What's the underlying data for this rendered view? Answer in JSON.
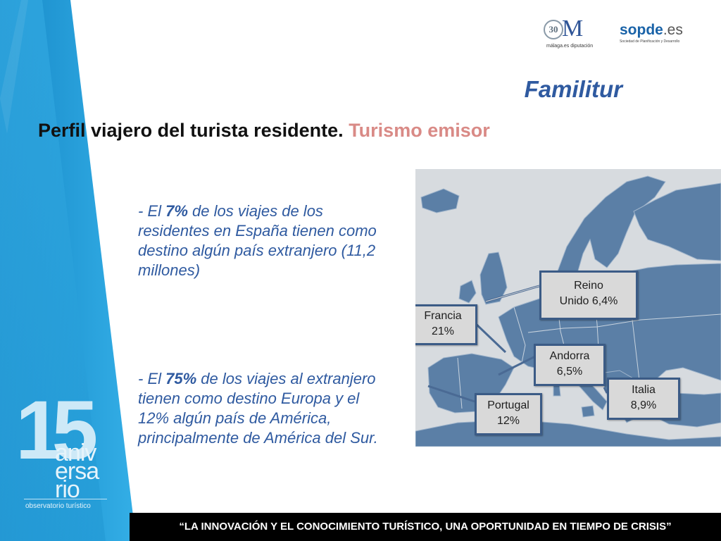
{
  "logos": {
    "malaga_badge": "30",
    "malaga_letter": "M",
    "malaga_caption": "málaga.es diputación",
    "sopde_name": "sopde",
    "sopde_domain": ".es",
    "sopde_tagline": "Sociedad de Planificación y Desarrollo"
  },
  "anniversary": {
    "number": "15",
    "word_1": "aniv",
    "word_2": "ersa",
    "word_3": "rio",
    "subtitle": "observatorio turístico"
  },
  "header": {
    "section_title": "Familitur",
    "heading_main": "Perfil viajero del turista residente.",
    "heading_accent": "Turismo emisor"
  },
  "bullets": [
    {
      "dash": "- ",
      "pre": "El ",
      "strong": "7%",
      "post": " de los viajes de los residentes en España tienen como destino algún país extranjero (11,2 millones)"
    },
    {
      "dash": "- ",
      "pre": "El ",
      "strong": "75%",
      "post": " de los viajes al extranjero tienen como destino Europa y el 12% algún país de América, principalmente de América del Sur."
    }
  ],
  "map_labels": {
    "reino_unido_line1": "Reino",
    "reino_unido_line2": "Unido 6,4%",
    "francia_line1": "Francia",
    "francia_line2": "21%",
    "andorra_line1": "Andorra",
    "andorra_line2": "6,5%",
    "italia_line1": "Italia",
    "italia_line2": "8,9%",
    "portugal_line1": "Portugal",
    "portugal_line2": "12%"
  },
  "colors": {
    "title_blue": "#2f5aa0",
    "accent_pink": "#d98a86",
    "land_blue": "#5b7fa6",
    "sea_grey": "#d7dbdf",
    "band_blue": "#1e9ad6"
  },
  "footer": {
    "quote": "“LA INNOVACIÓN Y EL CONOCIMIENTO TURÍSTICO, UNA OPORTUNIDAD EN TIEMPO DE CRISIS”"
  }
}
